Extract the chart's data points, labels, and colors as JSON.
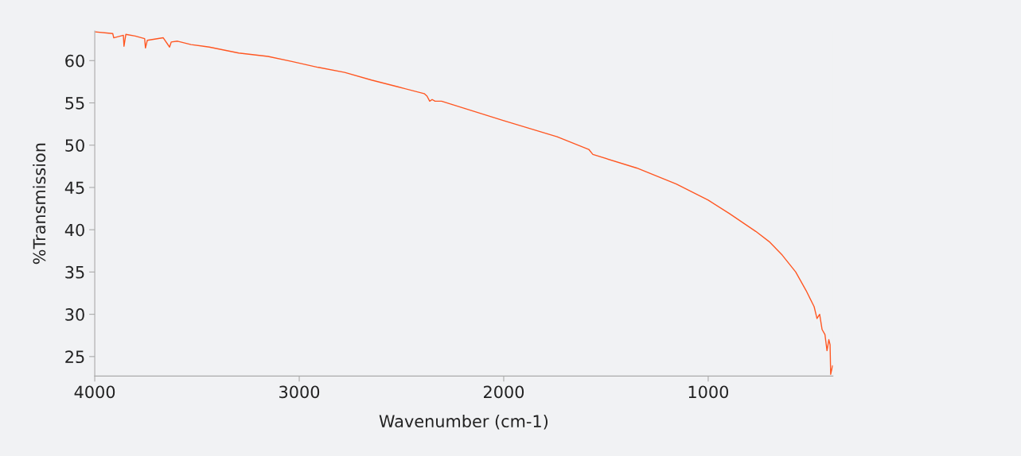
{
  "chart_data": {
    "type": "line",
    "xlabel": "Wavenumber (cm-1)",
    "ylabel": "%Transmission",
    "xlim": [
      4000,
      390
    ],
    "ylim": [
      22.7,
      63.5
    ],
    "xticks": [
      4000,
      3000,
      2000,
      1000
    ],
    "yticks": [
      25,
      30,
      35,
      40,
      45,
      50,
      55,
      60
    ],
    "grid": false,
    "marker": "none",
    "line_style": "solid",
    "series": [
      {
        "color": "#ff5722",
        "x": [
          3996,
          3912,
          3907,
          3860,
          3857,
          3848,
          3802,
          3756,
          3752,
          3743,
          3665,
          3634,
          3626,
          3595,
          3529,
          3440,
          3296,
          3153,
          3036,
          2907,
          2778,
          2647,
          2518,
          2389,
          2375,
          2362,
          2350,
          2336,
          2304,
          2000,
          1739,
          1584,
          1564,
          1350,
          1156,
          1000,
          896,
          767,
          702,
          638,
          572,
          521,
          482,
          468,
          455,
          443,
          429,
          419,
          410,
          404,
          401,
          392
        ],
        "values": [
          63.4,
          63.2,
          62.7,
          63.0,
          61.7,
          63.1,
          62.9,
          62.6,
          61.5,
          62.4,
          62.7,
          61.6,
          62.2,
          62.3,
          61.9,
          61.6,
          60.9,
          60.5,
          59.9,
          59.2,
          58.6,
          57.7,
          56.9,
          56.1,
          55.8,
          55.2,
          55.4,
          55.2,
          55.2,
          52.9,
          51.0,
          49.5,
          48.9,
          47.3,
          45.4,
          43.5,
          41.9,
          39.8,
          38.6,
          37.0,
          35.0,
          32.8,
          30.9,
          29.5,
          30.0,
          28.2,
          27.6,
          25.7,
          27.0,
          26.4,
          22.9,
          23.9
        ]
      }
    ]
  }
}
